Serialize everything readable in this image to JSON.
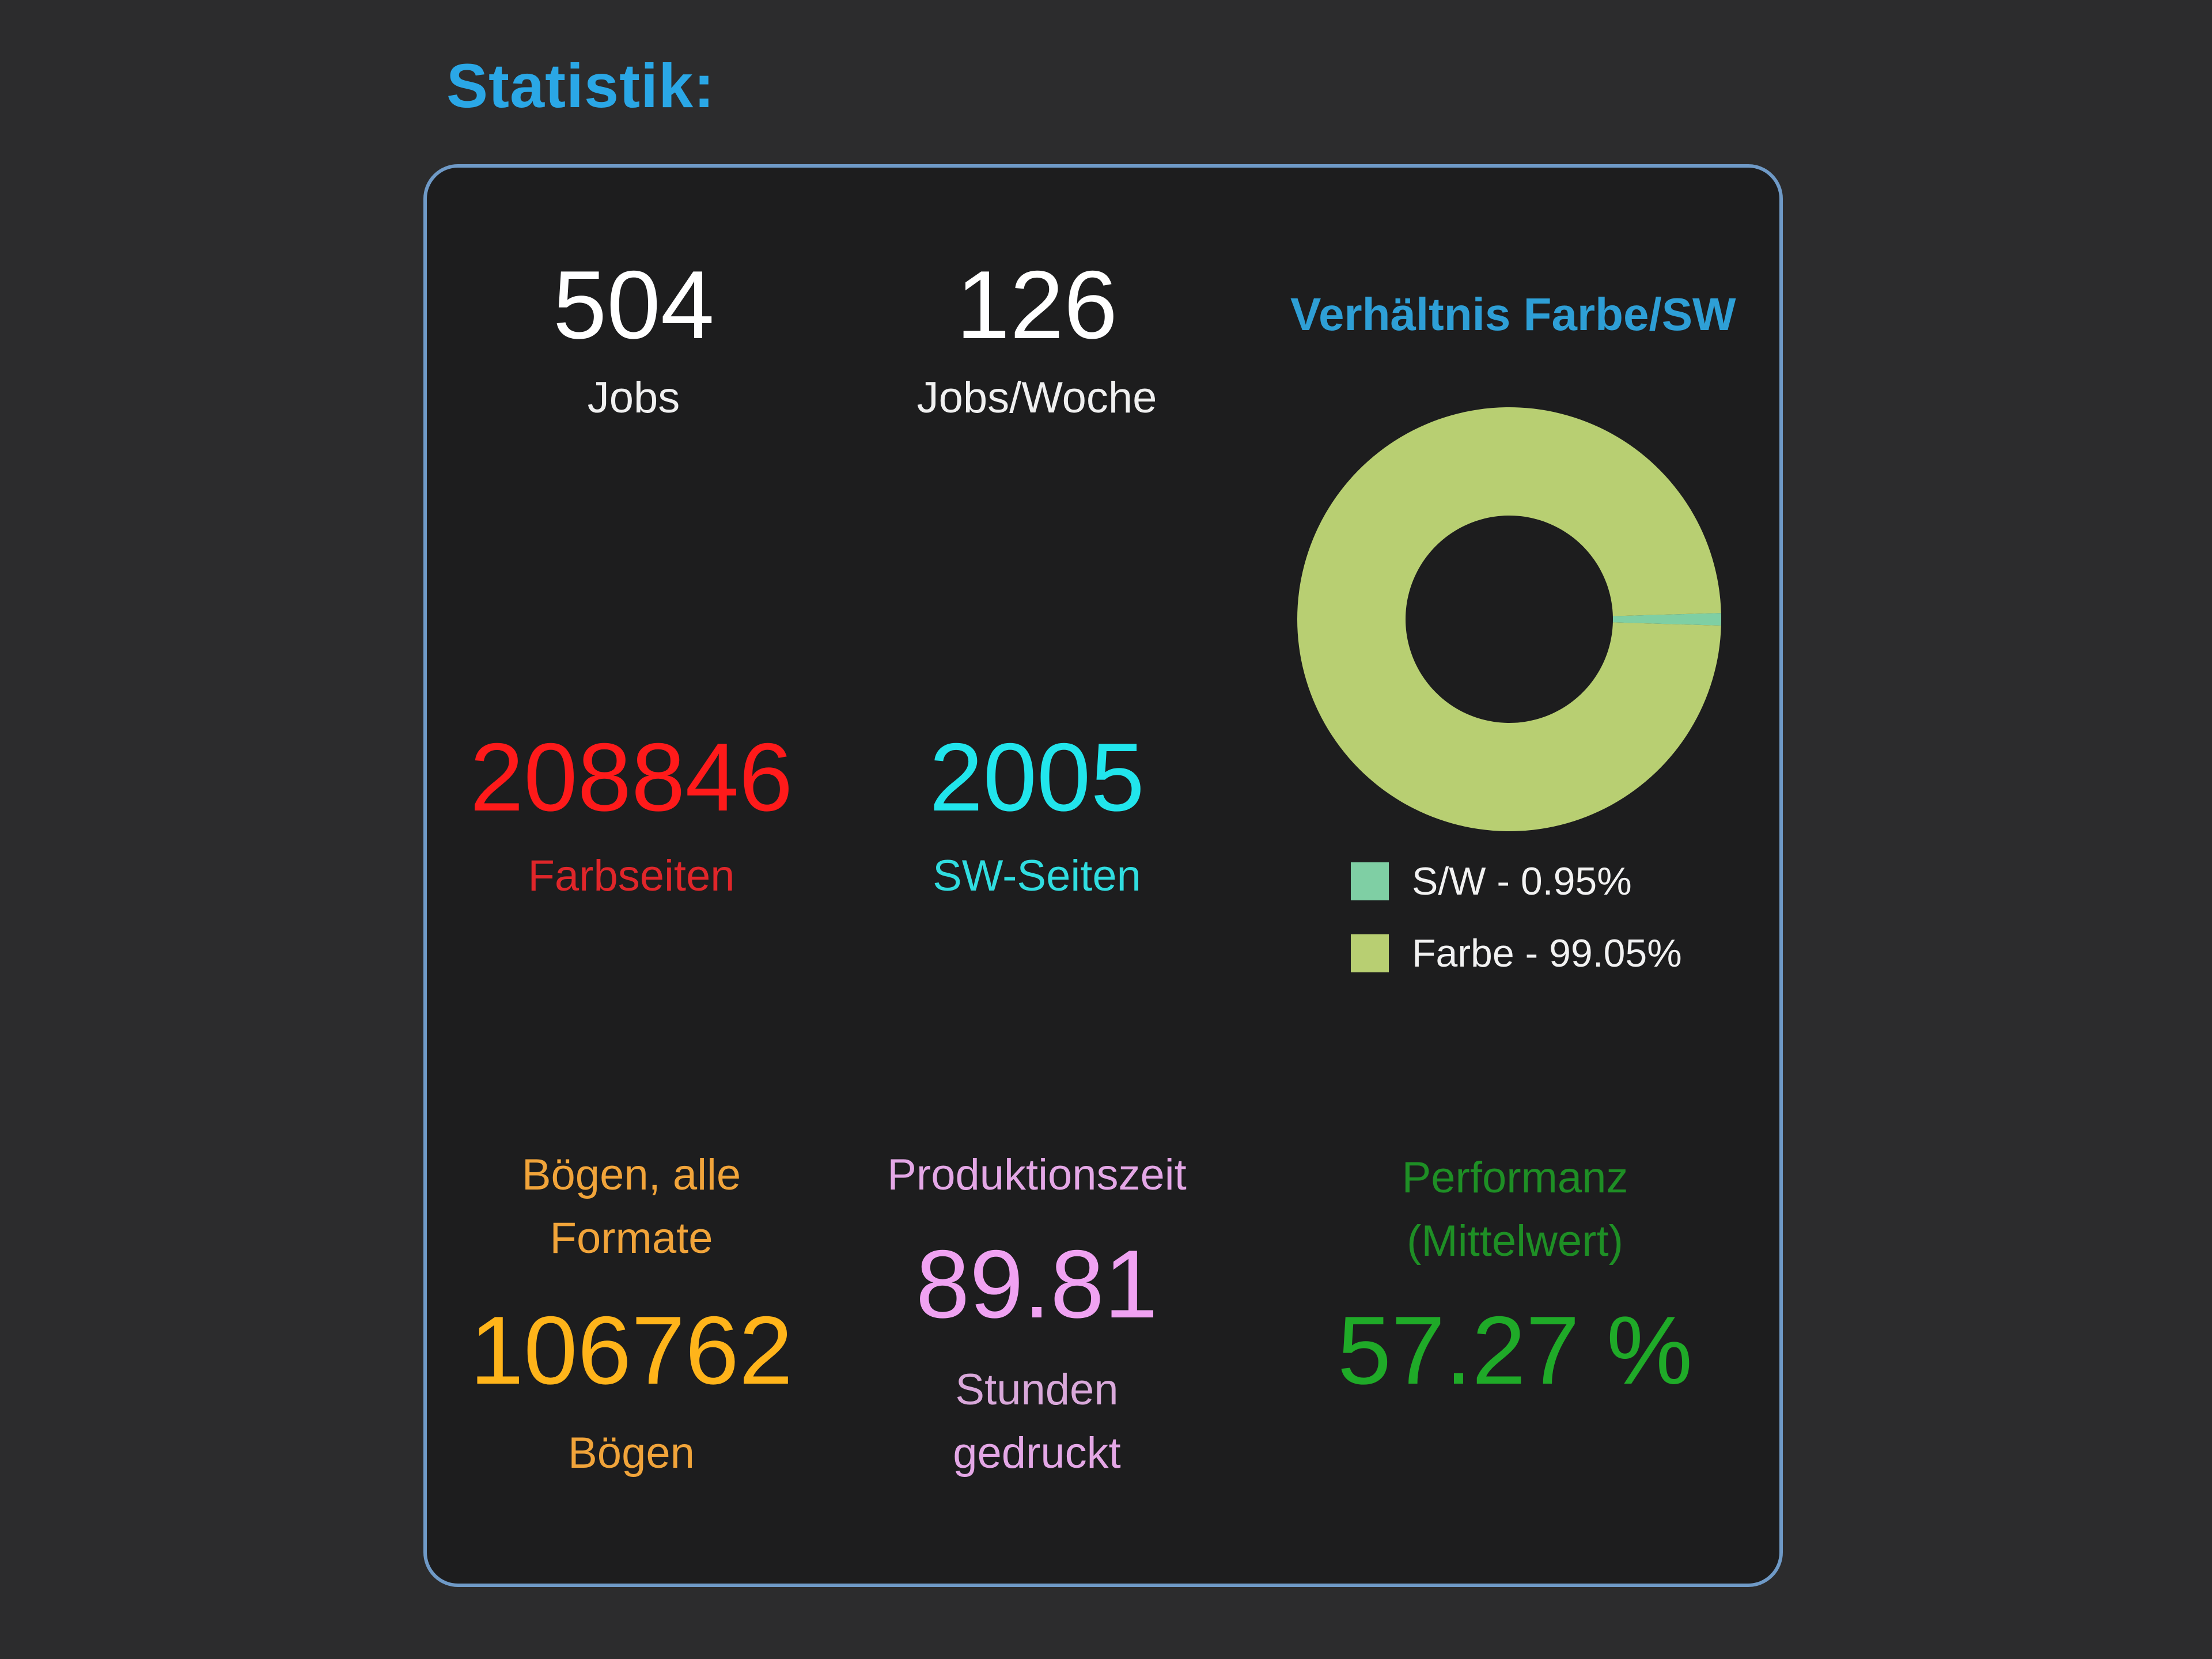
{
  "section": {
    "title": "Statistik:"
  },
  "stats": {
    "jobs": {
      "value": "504",
      "label": "Jobs"
    },
    "jobs_per_week": {
      "value": "126",
      "label": "Jobs/Woche"
    },
    "color_pages": {
      "value": "208846",
      "label": "Farbseiten"
    },
    "bw_pages": {
      "value": "2005",
      "label": "SW-Seiten"
    },
    "sheets": {
      "title_line1": "Bögen, alle",
      "title_line2": "Formate",
      "value": "106762",
      "unit": "Bögen"
    },
    "production_time": {
      "title": "Produktionszeit",
      "value": "89.81",
      "unit_line1": "Stunden",
      "unit_line2": "gedruckt"
    },
    "performance": {
      "title_line1": "Performanz",
      "title_line2": "(Mittelwert)",
      "value": "57.27 %"
    }
  },
  "colors": {
    "accent": "#2aa7e6",
    "bw_slice": "#7fcfa4",
    "color_slice": "#b8cf72"
  },
  "chart_data": {
    "type": "pie",
    "title": "Verhältnis Farbe/SW",
    "categories": [
      "S/W",
      "Farbe"
    ],
    "values": [
      0.95,
      99.05
    ],
    "legend": [
      "S/W - 0.95%",
      "Farbe - 99.05%"
    ],
    "legend_placement": "bottom"
  }
}
